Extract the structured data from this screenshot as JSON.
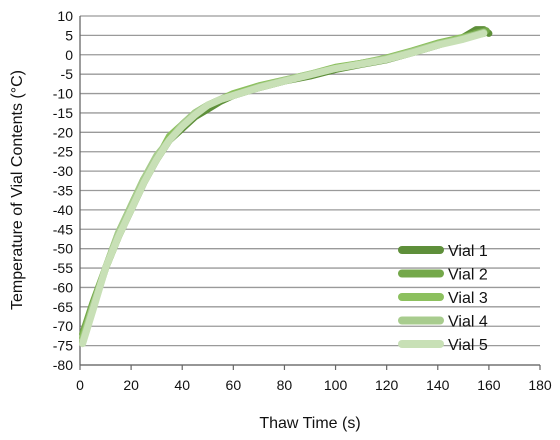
{
  "chart_data": {
    "type": "line",
    "title": "",
    "xlabel": "Thaw Time (s)",
    "ylabel": "Temperature of Vial Contents (°C)",
    "xlim": [
      0,
      180
    ],
    "ylim": [
      -80,
      10
    ],
    "xticks": [
      0,
      20,
      40,
      60,
      80,
      100,
      120,
      140,
      160,
      180
    ],
    "yticks": [
      10,
      5,
      0,
      -5,
      -10,
      -15,
      -20,
      -25,
      -30,
      -35,
      -40,
      -45,
      -50,
      -55,
      -60,
      -65,
      -70,
      -75,
      -80
    ],
    "grid": "horizontal",
    "legend_position": "bottom-right",
    "series": [
      {
        "name": "Vial 1",
        "color": "#5e8f3a",
        "points": [
          [
            1,
            -74
          ],
          [
            5,
            -65
          ],
          [
            10,
            -55
          ],
          [
            15,
            -47
          ],
          [
            20,
            -40
          ],
          [
            25,
            -33
          ],
          [
            30,
            -27
          ],
          [
            35,
            -22
          ],
          [
            40,
            -19
          ],
          [
            45,
            -16
          ],
          [
            50,
            -14
          ],
          [
            55,
            -12
          ],
          [
            60,
            -10.5
          ],
          [
            70,
            -8.5
          ],
          [
            80,
            -6.8
          ],
          [
            90,
            -5.5
          ],
          [
            100,
            -3.8
          ],
          [
            110,
            -2.5
          ],
          [
            120,
            -1.3
          ],
          [
            130,
            0.5
          ],
          [
            140,
            2.5
          ],
          [
            150,
            4.5
          ],
          [
            155,
            6.5
          ],
          [
            158,
            6.5
          ],
          [
            160,
            5.5
          ]
        ]
      },
      {
        "name": "Vial 2",
        "color": "#74a84a",
        "points": [
          [
            1,
            -72
          ],
          [
            5,
            -64
          ],
          [
            10,
            -55
          ],
          [
            15,
            -46
          ],
          [
            20,
            -39
          ],
          [
            25,
            -32
          ],
          [
            30,
            -27
          ],
          [
            35,
            -22
          ],
          [
            40,
            -18
          ],
          [
            45,
            -15
          ],
          [
            50,
            -13
          ],
          [
            55,
            -11.5
          ],
          [
            60,
            -10.5
          ],
          [
            70,
            -8.2
          ],
          [
            80,
            -6.6
          ],
          [
            90,
            -5.2
          ],
          [
            100,
            -3.4
          ],
          [
            110,
            -2.2
          ],
          [
            120,
            -1.0
          ],
          [
            130,
            0.8
          ],
          [
            140,
            2.8
          ],
          [
            150,
            4.4
          ],
          [
            155,
            5.6
          ],
          [
            159,
            6.2
          ]
        ]
      },
      {
        "name": "Vial 3",
        "color": "#8cc05e",
        "points": [
          [
            1,
            -73
          ],
          [
            5,
            -65
          ],
          [
            10,
            -55
          ],
          [
            15,
            -47
          ],
          [
            20,
            -39
          ],
          [
            25,
            -32
          ],
          [
            30,
            -27
          ],
          [
            35,
            -21
          ],
          [
            40,
            -18
          ],
          [
            45,
            -15
          ],
          [
            50,
            -13
          ],
          [
            55,
            -11.5
          ],
          [
            60,
            -10
          ],
          [
            70,
            -8
          ],
          [
            80,
            -6.5
          ],
          [
            90,
            -5
          ],
          [
            100,
            -3.2
          ],
          [
            110,
            -2.2
          ],
          [
            120,
            -0.8
          ],
          [
            130,
            1.0
          ],
          [
            140,
            3.0
          ],
          [
            150,
            4.5
          ],
          [
            158,
            5.5
          ]
        ]
      },
      {
        "name": "Vial 4",
        "color": "#a8cc8e",
        "points": [
          [
            1,
            -74
          ],
          [
            5,
            -65
          ],
          [
            10,
            -55
          ],
          [
            15,
            -46
          ],
          [
            20,
            -39
          ],
          [
            25,
            -32
          ],
          [
            30,
            -26
          ],
          [
            35,
            -22
          ],
          [
            40,
            -18
          ],
          [
            45,
            -15
          ],
          [
            50,
            -13
          ],
          [
            55,
            -11.5
          ],
          [
            60,
            -10.5
          ],
          [
            70,
            -8.3
          ],
          [
            80,
            -6.6
          ],
          [
            90,
            -5
          ],
          [
            100,
            -3.5
          ],
          [
            110,
            -2.3
          ],
          [
            120,
            -1.0
          ],
          [
            130,
            0.8
          ],
          [
            140,
            2.7
          ],
          [
            150,
            4.2
          ],
          [
            158,
            5.8
          ]
        ]
      },
      {
        "name": "Vial 5",
        "color": "#c8e0b6",
        "points": [
          [
            1,
            -74.5
          ],
          [
            5,
            -66
          ],
          [
            10,
            -55
          ],
          [
            15,
            -47
          ],
          [
            20,
            -40
          ],
          [
            25,
            -33
          ],
          [
            30,
            -27
          ],
          [
            35,
            -22
          ],
          [
            40,
            -18.5
          ],
          [
            45,
            -15.5
          ],
          [
            50,
            -13
          ],
          [
            55,
            -11.5
          ],
          [
            60,
            -10.5
          ],
          [
            70,
            -8.5
          ],
          [
            80,
            -6.8
          ],
          [
            90,
            -5.2
          ],
          [
            100,
            -3.5
          ],
          [
            110,
            -2.4
          ],
          [
            120,
            -1.2
          ],
          [
            130,
            0.5
          ],
          [
            140,
            2.5
          ],
          [
            150,
            4.0
          ],
          [
            158,
            5.5
          ]
        ]
      }
    ]
  }
}
